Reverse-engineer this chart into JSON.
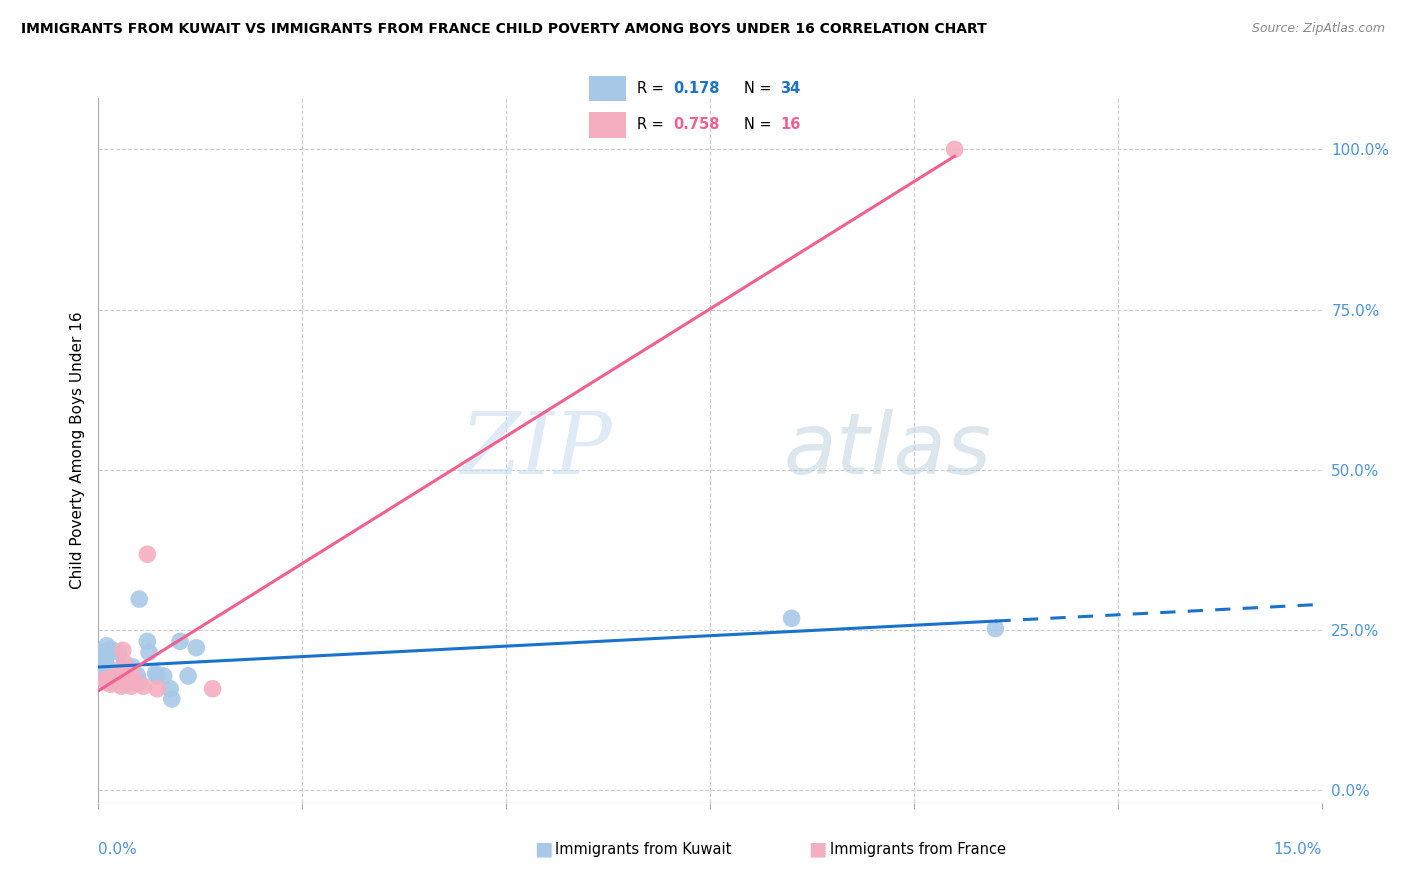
{
  "title": "IMMIGRANTS FROM KUWAIT VS IMMIGRANTS FROM FRANCE CHILD POVERTY AMONG BOYS UNDER 16 CORRELATION CHART",
  "source": "Source: ZipAtlas.com",
  "ylabel": "Child Poverty Among Boys Under 16",
  "ytick_labels": [
    "0.0%",
    "25.0%",
    "50.0%",
    "75.0%",
    "100.0%"
  ],
  "ytick_values": [
    0.0,
    0.25,
    0.5,
    0.75,
    1.0
  ],
  "xlim": [
    0,
    0.15
  ],
  "ylim": [
    -0.02,
    1.08
  ],
  "watermark_zip": "ZIP",
  "watermark_atlas": "atlas",
  "kuwait_R": "0.178",
  "kuwait_N": "34",
  "france_R": "0.758",
  "france_N": "16",
  "kuwait_color": "#a8c8e8",
  "france_color": "#f5aec0",
  "kuwait_line_color": "#1a72cc",
  "france_line_color": "#f06090",
  "kuwait_scatter": [
    [
      0.0008,
      0.205
    ],
    [
      0.0008,
      0.2
    ],
    [
      0.001,
      0.195
    ],
    [
      0.001,
      0.21
    ],
    [
      0.0005,
      0.215
    ],
    [
      0.001,
      0.225
    ],
    [
      0.0015,
      0.22
    ],
    [
      0.0015,
      0.185
    ],
    [
      0.0005,
      0.178
    ],
    [
      0.001,
      0.178
    ],
    [
      0.002,
      0.172
    ],
    [
      0.0025,
      0.215
    ],
    [
      0.003,
      0.188
    ],
    [
      0.003,
      0.192
    ],
    [
      0.0028,
      0.178
    ],
    [
      0.003,
      0.168
    ],
    [
      0.004,
      0.168
    ],
    [
      0.0038,
      0.178
    ],
    [
      0.0042,
      0.192
    ],
    [
      0.0048,
      0.178
    ],
    [
      0.005,
      0.168
    ],
    [
      0.005,
      0.298
    ],
    [
      0.006,
      0.232
    ],
    [
      0.0062,
      0.215
    ],
    [
      0.007,
      0.182
    ],
    [
      0.0072,
      0.178
    ],
    [
      0.008,
      0.178
    ],
    [
      0.0088,
      0.158
    ],
    [
      0.009,
      0.142
    ],
    [
      0.01,
      0.232
    ],
    [
      0.011,
      0.178
    ],
    [
      0.012,
      0.222
    ],
    [
      0.085,
      0.268
    ],
    [
      0.11,
      0.252
    ]
  ],
  "france_scatter": [
    [
      0.0008,
      0.172
    ],
    [
      0.001,
      0.168
    ],
    [
      0.0015,
      0.165
    ],
    [
      0.002,
      0.178
    ],
    [
      0.0022,
      0.172
    ],
    [
      0.0028,
      0.162
    ],
    [
      0.003,
      0.218
    ],
    [
      0.0032,
      0.198
    ],
    [
      0.0035,
      0.178
    ],
    [
      0.004,
      0.162
    ],
    [
      0.0042,
      0.178
    ],
    [
      0.0055,
      0.162
    ],
    [
      0.006,
      0.368
    ],
    [
      0.0072,
      0.158
    ],
    [
      0.014,
      0.158
    ],
    [
      0.105,
      1.0
    ]
  ],
  "legend_r1_color": "#1a72cc",
  "legend_r2_color": "#f06090",
  "bottom_legend_kuwait": "Immigrants from Kuwait",
  "bottom_legend_france": "Immigrants from France"
}
